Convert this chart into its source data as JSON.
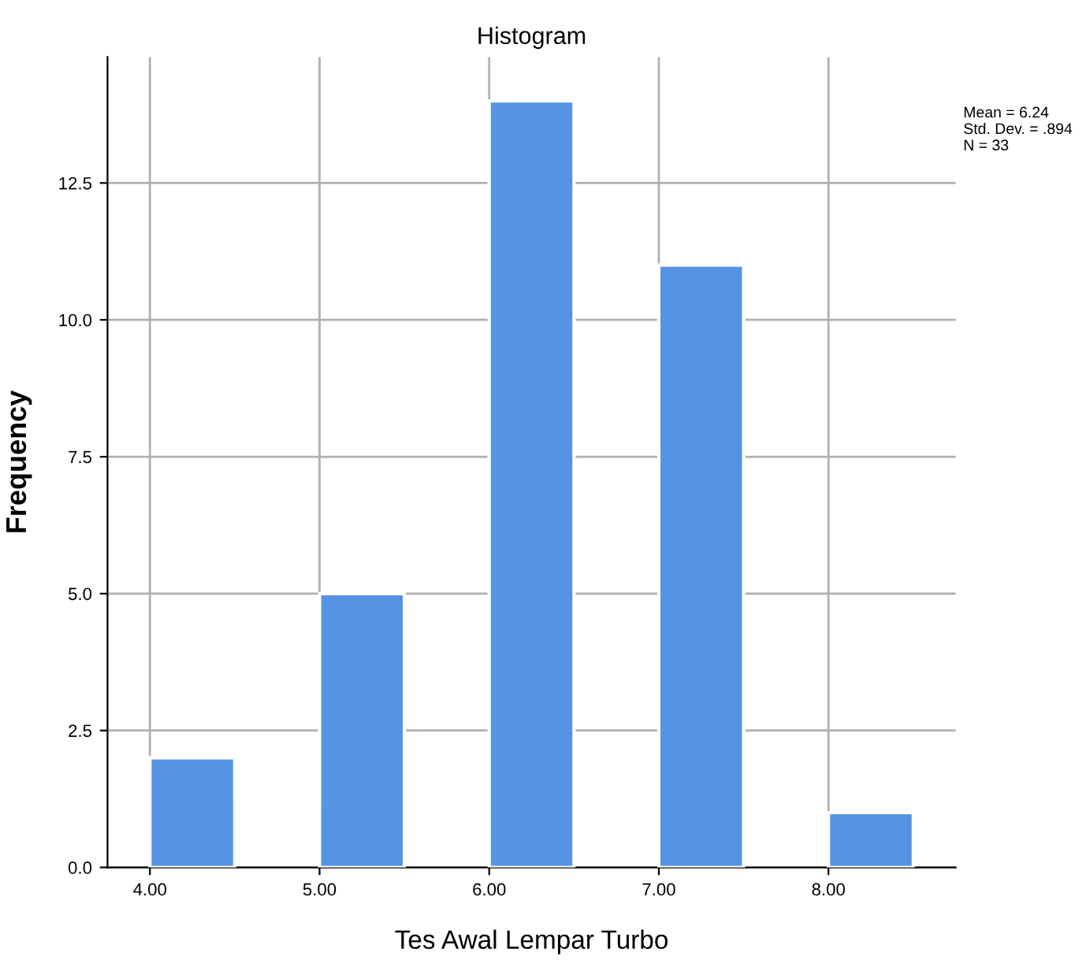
{
  "chart_data": {
    "type": "histogram",
    "title": "Histogram",
    "xlabel": "Tes Awal Lempar Turbo",
    "ylabel": "Frequency",
    "bins": [
      4.0,
      4.5,
      5.0,
      5.5,
      6.0,
      6.5,
      7.0,
      7.5,
      8.0,
      8.5
    ],
    "values": [
      2,
      0,
      5,
      0,
      14,
      0,
      11,
      0,
      1
    ],
    "color": "#5694e3",
    "xlim": [
      3.75,
      8.75
    ],
    "ylim": [
      0,
      14.8
    ],
    "xticks": [
      {
        "value": 4,
        "label": "4.00"
      },
      {
        "value": 5,
        "label": "5.00"
      },
      {
        "value": 6,
        "label": "6.00"
      },
      {
        "value": 7,
        "label": "7.00"
      },
      {
        "value": 8,
        "label": "8.00"
      }
    ],
    "yticks": [
      {
        "value": 0,
        "label": "0.0"
      },
      {
        "value": 2.5,
        "label": "2.5"
      },
      {
        "value": 5,
        "label": "5.0"
      },
      {
        "value": 7.5,
        "label": "7.5"
      },
      {
        "value": 10,
        "label": "10.0"
      },
      {
        "value": 12.5,
        "label": "12.5"
      }
    ],
    "grid": true,
    "annotations": [
      "Mean = 6.24",
      "Std. Dev. = .894",
      "N = 33"
    ]
  }
}
